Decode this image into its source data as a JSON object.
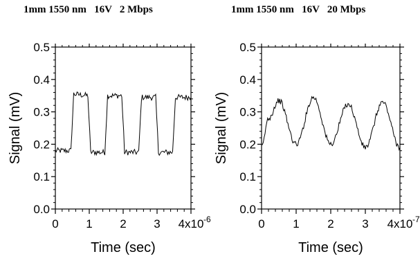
{
  "chart_data": [
    {
      "type": "line",
      "title": "1mm 1550 nm   16V   2 Mbps",
      "xlabel": "Time (sec)",
      "ylabel": "Signal (mV)",
      "xlim": [
        0,
        4e-06
      ],
      "ylim": [
        0,
        0.5
      ],
      "x_ticks": [
        0,
        1e-06,
        2e-06,
        3e-06,
        4e-06
      ],
      "x_tick_labels": [
        "0",
        "1",
        "2",
        "3",
        "4x10"
      ],
      "x_exponent": "-6",
      "y_ticks": [
        0.0,
        0.1,
        0.2,
        0.3,
        0.4,
        0.5
      ],
      "y_tick_labels": [
        "0.0",
        "0.1",
        "0.2",
        "0.3",
        "0.4",
        "0.5"
      ],
      "grid": false,
      "series": [
        {
          "x": [
            0,
            4.6e-07,
            5.4e-07,
            9.6e-07,
            1.04e-06,
            1.46e-06,
            1.54e-06,
            1.96e-06,
            2.04e-06,
            2.46e-06,
            2.54e-06,
            2.96e-06,
            3.04e-06,
            3.46e-06,
            3.54e-06,
            4e-06
          ],
          "y": [
            0.18,
            0.18,
            0.355,
            0.35,
            0.175,
            0.175,
            0.35,
            0.35,
            0.175,
            0.175,
            0.345,
            0.345,
            0.175,
            0.175,
            0.345,
            0.345
          ]
        }
      ]
    },
    {
      "type": "line",
      "title": "1mm 1550 nm   16V   20 Mbps",
      "xlabel": "Time (sec)",
      "ylabel": "Signal (mV)",
      "xlim": [
        0,
        4e-07
      ],
      "ylim": [
        0,
        0.5
      ],
      "x_ticks": [
        0,
        1e-07,
        2e-07,
        3e-07,
        4e-07
      ],
      "x_tick_labels": [
        "0",
        "1",
        "2",
        "3",
        "4x10"
      ],
      "x_exponent": "-7",
      "y_ticks": [
        0.0,
        0.1,
        0.2,
        0.3,
        0.4,
        0.5
      ],
      "y_tick_labels": [
        "0.0",
        "0.1",
        "0.2",
        "0.3",
        "0.4",
        "0.5"
      ],
      "grid": false,
      "series": [
        {
          "x": [
            0,
            2e-08,
            5e-08,
            1e-07,
            1.5e-07,
            2e-07,
            2.5e-07,
            3e-07,
            3.5e-07,
            4e-07
          ],
          "y": [
            0.19,
            0.28,
            0.335,
            0.2,
            0.345,
            0.2,
            0.325,
            0.19,
            0.33,
            0.19
          ]
        }
      ]
    }
  ]
}
